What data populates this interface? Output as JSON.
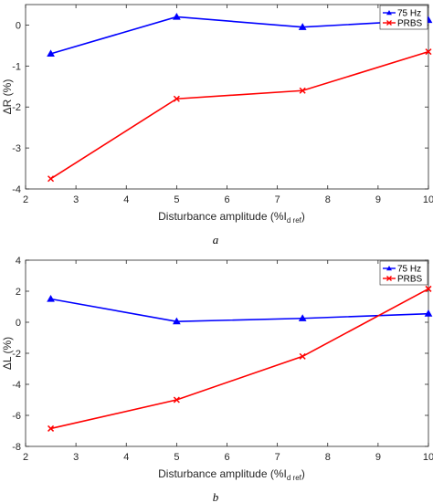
{
  "chart_data": [
    {
      "type": "line",
      "panel_label": "a",
      "x": [
        2.5,
        5,
        7.5,
        10
      ],
      "series": [
        {
          "name": "75 Hz",
          "color": "#0000ff",
          "marker": "triangle",
          "values": [
            -0.7,
            0.2,
            -0.05,
            0.12
          ]
        },
        {
          "name": "PRBS",
          "color": "#ff0000",
          "marker": "x",
          "values": [
            -3.75,
            -1.8,
            -1.6,
            -0.65
          ]
        }
      ],
      "xlim": [
        2,
        10
      ],
      "ylim": [
        -4,
        0.5
      ],
      "xticks": [
        2,
        3,
        4,
        5,
        6,
        7,
        8,
        9,
        10
      ],
      "yticks": [
        -4,
        -3,
        -2,
        -1,
        0
      ],
      "xlabel": "Disturbance amplitude (%I",
      "xlabel_sub": "d ref",
      "xlabel_end": ")",
      "ylabel": "ΔR  (%)",
      "legend_position": "top-right",
      "grid": false
    },
    {
      "type": "line",
      "panel_label": "b",
      "x": [
        2.5,
        5,
        7.5,
        10
      ],
      "series": [
        {
          "name": "75 Hz",
          "color": "#0000ff",
          "marker": "triangle",
          "values": [
            1.5,
            0.05,
            0.25,
            0.55
          ]
        },
        {
          "name": "PRBS",
          "color": "#ff0000",
          "marker": "x",
          "values": [
            -6.85,
            -5.0,
            -2.2,
            2.15
          ]
        }
      ],
      "xlim": [
        2,
        10
      ],
      "ylim": [
        -8,
        4
      ],
      "xticks": [
        2,
        3,
        4,
        5,
        6,
        7,
        8,
        9,
        10
      ],
      "yticks": [
        -8,
        -6,
        -4,
        -2,
        0,
        2,
        4
      ],
      "xlabel": "Disturbance amplitude (%I",
      "xlabel_sub": "d ref",
      "xlabel_end": ")",
      "ylabel": "ΔL  (%)",
      "legend_position": "top-right",
      "grid": false
    }
  ]
}
